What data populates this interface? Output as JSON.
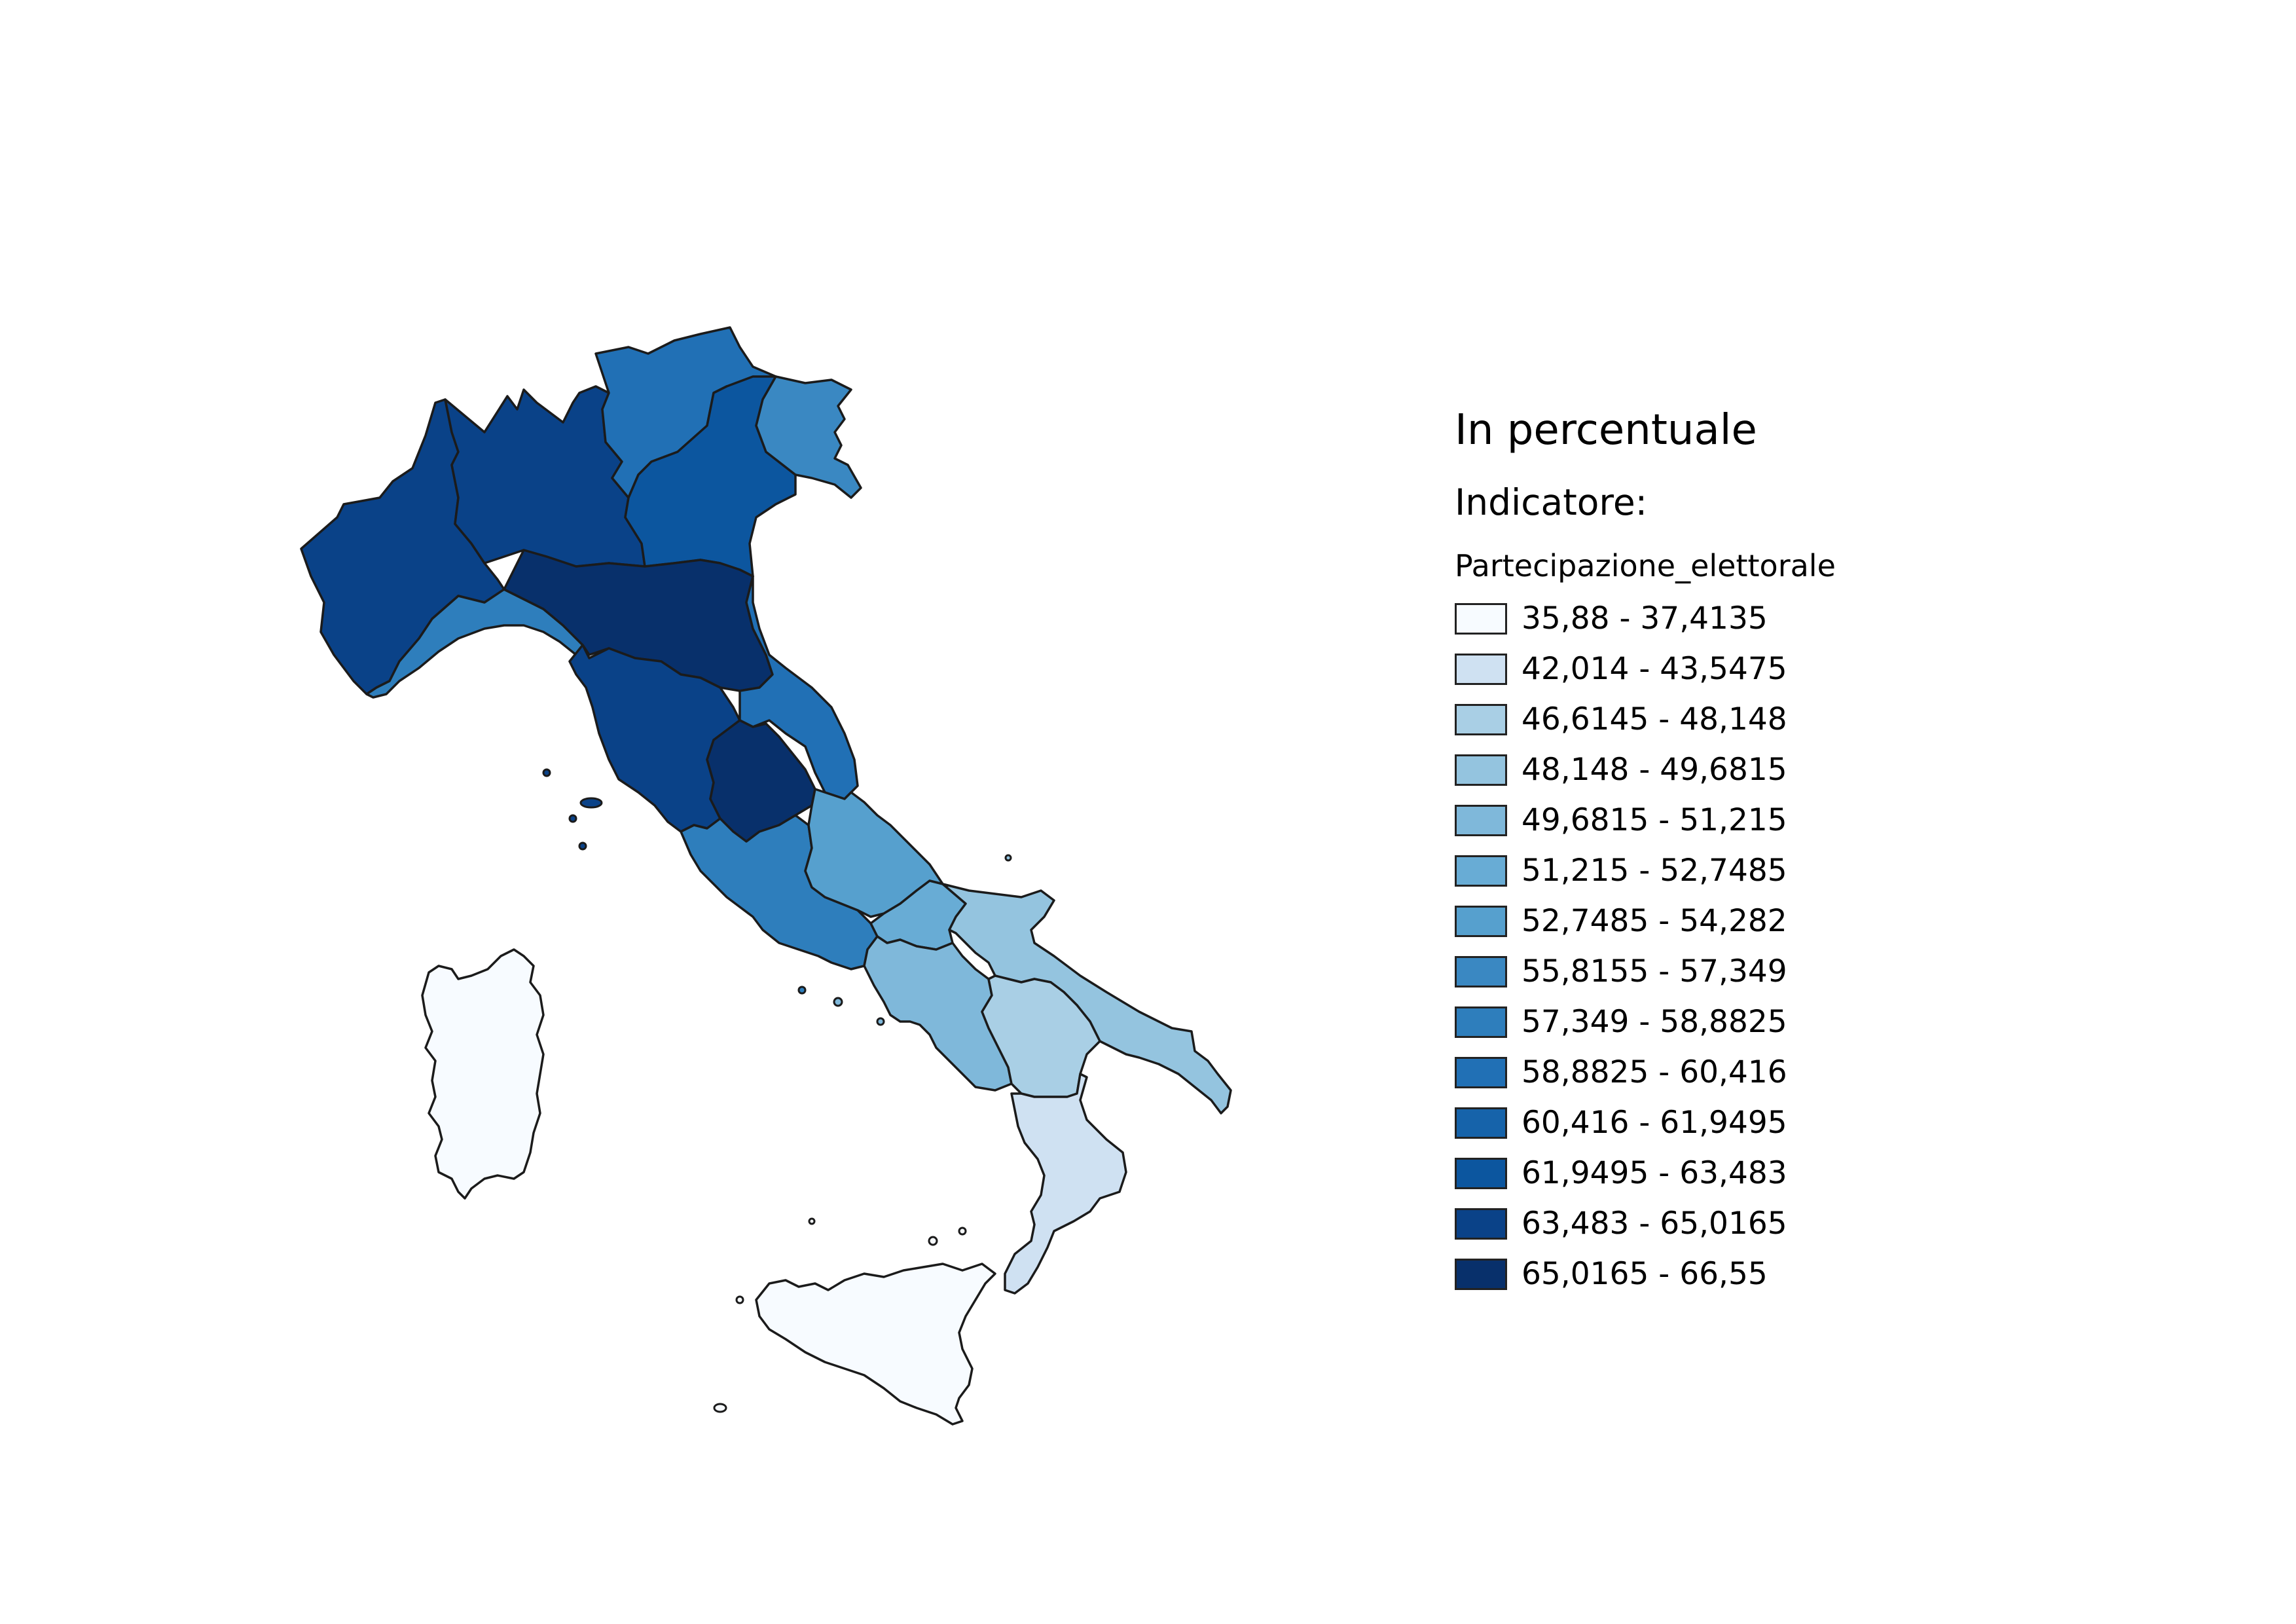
{
  "legend": {
    "title": "In percentuale",
    "subtitle": "Indicatore:",
    "field": "Partecipazione_elettorale",
    "classes": [
      {
        "label": "35,88 - 37,4135",
        "color": "#f7fbff"
      },
      {
        "label": "42,014 - 43,5475",
        "color": "#cfe1f2"
      },
      {
        "label": "46,6145 - 48,148",
        "color": "#a9cfe5"
      },
      {
        "label": "48,148 - 49,6815",
        "color": "#94c4df"
      },
      {
        "label": "49,6815 - 51,215",
        "color": "#7fb8da"
      },
      {
        "label": "51,215 - 52,7485",
        "color": "#68acd5"
      },
      {
        "label": "52,7485 - 54,282",
        "color": "#56a0ce"
      },
      {
        "label": "55,8155 - 57,349",
        "color": "#3a88c2"
      },
      {
        "label": "57,349 - 58,8825",
        "color": "#2e7ebc"
      },
      {
        "label": "58,8825 - 60,416",
        "color": "#2170b5"
      },
      {
        "label": "60,416 - 61,9495",
        "color": "#1663aa"
      },
      {
        "label": "61,9495 - 63,483",
        "color": "#0c569f"
      },
      {
        "label": "63,483 - 65,0165",
        "color": "#0a4288"
      },
      {
        "label": "65,0165 - 66,55",
        "color": "#08306b"
      }
    ]
  }
}
